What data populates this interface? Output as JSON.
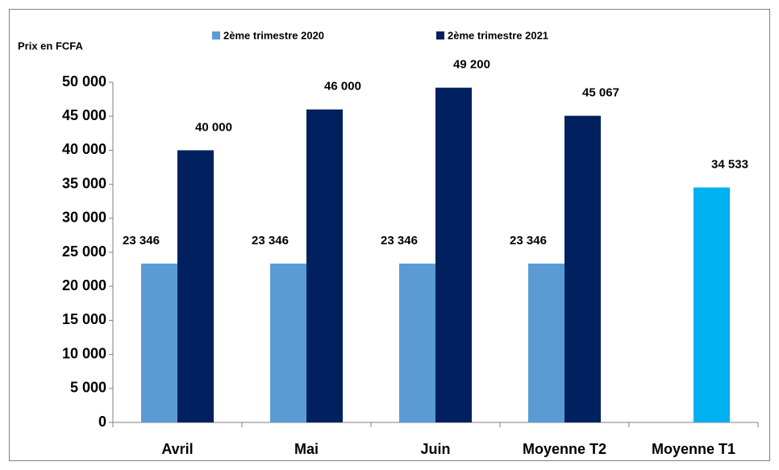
{
  "chart_data": {
    "type": "bar",
    "y_label": "Prix en FCFA",
    "categories": [
      "Avril",
      "Mai",
      "Juin",
      "Moyenne T2",
      "Moyenne T1"
    ],
    "series": [
      {
        "name": "2ème trimestre 2020",
        "color": "#5b9bd5",
        "values": [
          23346,
          23346,
          23346,
          23346,
          null
        ],
        "value_labels": [
          "23 346",
          "23 346",
          "23 346",
          "23 346",
          null
        ]
      },
      {
        "name": "2ème trimestre 2021",
        "color": "#002060",
        "colors": [
          "#002060",
          "#002060",
          "#002060",
          "#002060",
          "#00b0f0"
        ],
        "values": [
          40000,
          46000,
          49200,
          45067,
          34533
        ],
        "value_labels": [
          "40 000",
          "46 000",
          "49 200",
          "45 067",
          "34 533"
        ]
      }
    ],
    "ylim": [
      0,
      50000
    ],
    "yticks": [
      {
        "value": 0,
        "label": "0"
      },
      {
        "value": 5000,
        "label": "5 000"
      },
      {
        "value": 10000,
        "label": "10 000"
      },
      {
        "value": 15000,
        "label": "15 000"
      },
      {
        "value": 20000,
        "label": "20 000"
      },
      {
        "value": 25000,
        "label": "25 000"
      },
      {
        "value": 30000,
        "label": "30 000"
      },
      {
        "value": 35000,
        "label": "35 000"
      },
      {
        "value": 40000,
        "label": "40 000"
      },
      {
        "value": 45000,
        "label": "45 000"
      },
      {
        "value": 50000,
        "label": "50 000"
      }
    ],
    "grid": false,
    "legend": "top"
  }
}
